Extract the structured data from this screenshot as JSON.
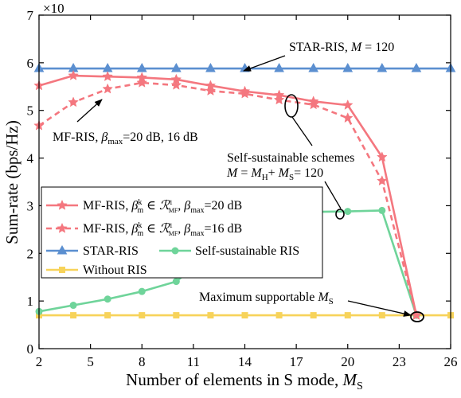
{
  "chart_data": {
    "type": "line",
    "title": "",
    "xlabel": "Number of elements in S mode, M_S",
    "ylabel": "Sum-rate (bps/Hz)",
    "y_multiplier": "×10",
    "xlim": [
      2,
      26
    ],
    "ylim": [
      0,
      7
    ],
    "xticks": [
      2,
      5,
      8,
      11,
      14,
      17,
      20,
      23,
      26
    ],
    "yticks": [
      0,
      1,
      2,
      3,
      4,
      5,
      6,
      7
    ],
    "grid": false,
    "legend_position": "lower-left",
    "series": [
      {
        "key": "mf20",
        "name": "MF-RIS, β_m^k ∈ R_MF^1, β_max=20 dB",
        "color": "#f4777f",
        "dash": "solid",
        "marker": "star",
        "x": [
          2,
          4,
          6,
          8,
          10,
          12,
          14,
          16,
          18,
          20,
          22,
          24
        ],
        "y": [
          5.52,
          5.73,
          5.71,
          5.69,
          5.65,
          5.52,
          5.4,
          5.32,
          5.19,
          5.11,
          4.02,
          0.7
        ]
      },
      {
        "key": "mf16",
        "name": "MF-RIS, β_m^k ∈ R_MF^1, β_max=16 dB",
        "color": "#f4777f",
        "dash": "dashed",
        "marker": "star",
        "x": [
          2,
          4,
          6,
          8,
          10,
          12,
          14,
          16,
          18,
          20,
          22,
          24
        ],
        "y": [
          4.68,
          5.17,
          5.45,
          5.58,
          5.53,
          5.41,
          5.35,
          5.22,
          5.12,
          4.84,
          3.52,
          0.7
        ]
      },
      {
        "key": "star",
        "name": "STAR-RIS",
        "color": "#5b8fd0",
        "dash": "solid",
        "marker": "triangle",
        "x": [
          2,
          4,
          6,
          8,
          10,
          12,
          14,
          16,
          18,
          20,
          22,
          24,
          26
        ],
        "y": [
          5.88,
          5.88,
          5.88,
          5.88,
          5.88,
          5.88,
          5.88,
          5.88,
          5.88,
          5.88,
          5.88,
          5.88,
          5.88
        ]
      },
      {
        "key": "self",
        "name": "Self-sustainable RIS",
        "color": "#6fd49a",
        "dash": "solid",
        "marker": "circle",
        "x": [
          2,
          4,
          6,
          8,
          10,
          12,
          14,
          16,
          18,
          20,
          22,
          24
        ],
        "y": [
          0.78,
          0.91,
          1.04,
          1.2,
          1.41,
          2.0,
          2.6,
          2.8,
          2.87,
          2.88,
          2.9,
          0.7
        ]
      },
      {
        "key": "none",
        "name": "Without RIS",
        "color": "#f7d35a",
        "dash": "solid",
        "marker": "square",
        "x": [
          2,
          4,
          6,
          8,
          10,
          12,
          14,
          16,
          18,
          20,
          22,
          24,
          26
        ],
        "y": [
          0.7,
          0.7,
          0.7,
          0.7,
          0.7,
          0.7,
          0.7,
          0.7,
          0.7,
          0.7,
          0.7,
          0.7,
          0.7
        ]
      }
    ],
    "annotations": {
      "star_ris": "STAR-RIS, M = 120",
      "mf_ris": "MF-RIS, β_max=20 dB, 16 dB",
      "self_line1": "Self-sustainable schemes",
      "self_line2": "M = M_H+ M_S= 120",
      "max_supp": "Maximum supportable M_S"
    }
  }
}
